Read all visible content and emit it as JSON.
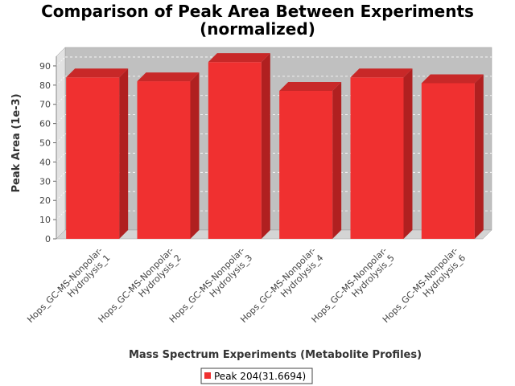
{
  "chart_data": {
    "type": "bar",
    "title": "Comparison of Peak Area Between Experiments",
    "subtitle": "(normalized)",
    "xlabel": "Mass Spectrum Experiments (Metabolite Profiles)",
    "ylabel": "Peak Area (1e-3)",
    "ylim": [
      0,
      95
    ],
    "yticks": [
      0,
      10,
      20,
      30,
      40,
      50,
      60,
      70,
      80,
      90
    ],
    "grid": true,
    "legend_position": "bottom-center",
    "categories": [
      [
        "Hops_GC-MS-Nonpolar-",
        "Hydrolysis_1"
      ],
      [
        "Hops_GC-MS-Nonpolar-",
        "Hydrolysis_2"
      ],
      [
        "Hops_GC-MS-Nonpolar-",
        "Hydrolysis_3"
      ],
      [
        "Hops_GC-MS-Nonpolar-",
        "Hydrolysis_4"
      ],
      [
        "Hops_GC-MS-Nonpolar-",
        "Hydrolysis_5"
      ],
      [
        "Hops_GC-MS-Nonpolar-",
        "Hydrolysis_6"
      ]
    ],
    "series": [
      {
        "name": "Peak 204(31.6694)",
        "color": "#f03030",
        "values": [
          84,
          82,
          92,
          77,
          84,
          81
        ]
      }
    ]
  }
}
